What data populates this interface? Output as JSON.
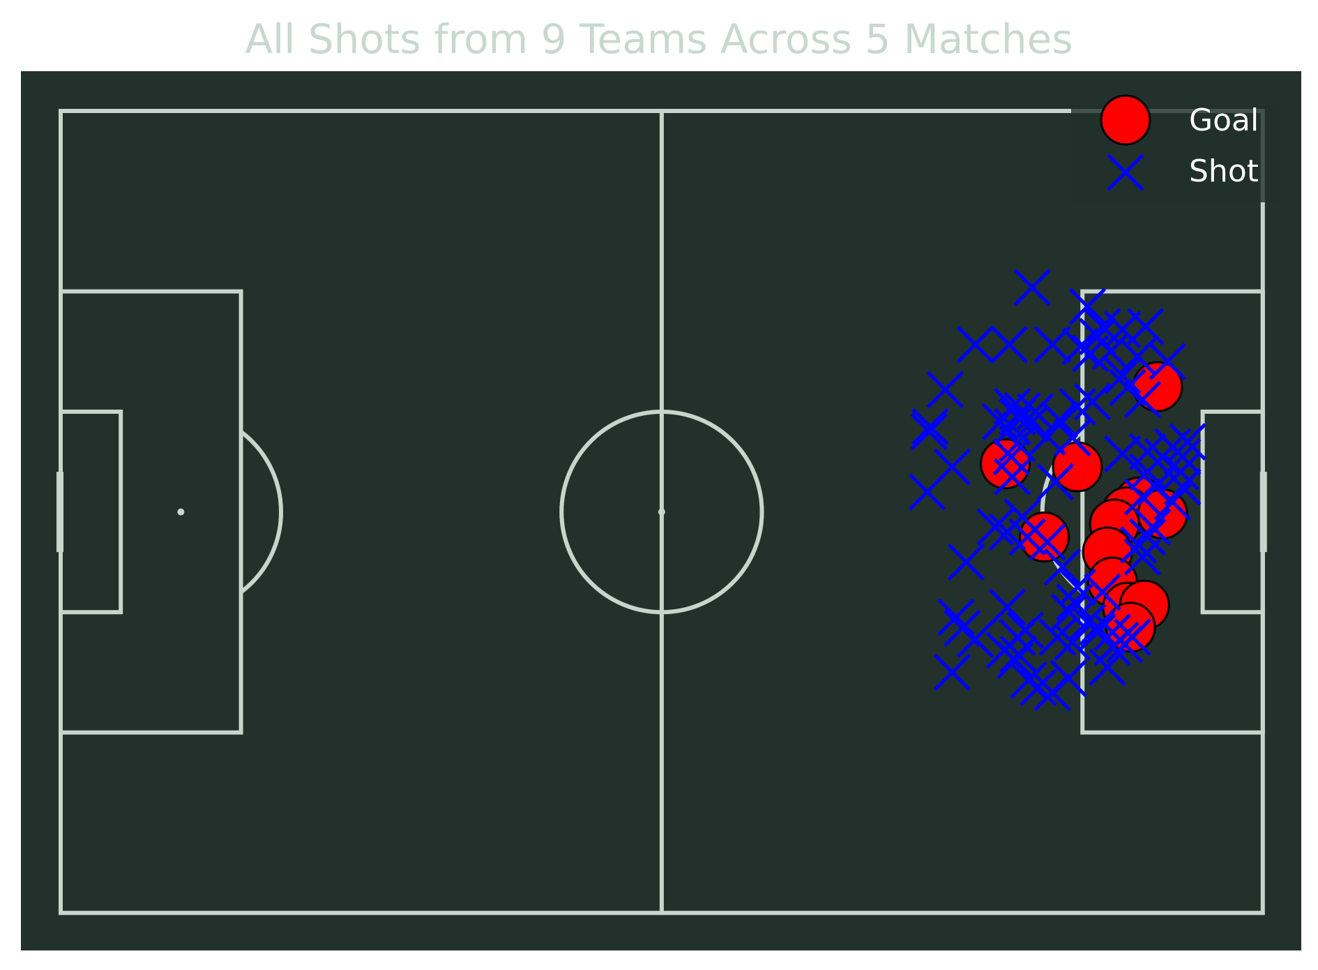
{
  "chart_data": {
    "type": "scatter",
    "title": "All Shots from 9 Teams Across 5 Matches",
    "pitch": {
      "length": 120,
      "width": 80,
      "background": "#22312b",
      "line_color": "#c7d5cc"
    },
    "xlim": [
      0,
      120
    ],
    "ylim": [
      0,
      80
    ],
    "legend_position": "top-right",
    "series": [
      {
        "name": "Goal",
        "marker": "circle",
        "color": "#ff0000",
        "edgecolor": "#000000",
        "points": [
          [
            109.5,
            27.5
          ],
          [
            94.3,
            35.2
          ],
          [
            101.5,
            35.5
          ],
          [
            98.2,
            42.5
          ],
          [
            107.7,
            39.0
          ],
          [
            106.4,
            40.0
          ],
          [
            105.2,
            41.2
          ],
          [
            110.0,
            40.2
          ],
          [
            104.5,
            44.0
          ],
          [
            105.0,
            47.0
          ],
          [
            106.5,
            49.5
          ],
          [
            108.2,
            49.3
          ],
          [
            106.8,
            51.5
          ]
        ]
      },
      {
        "name": "Shot",
        "marker": "x",
        "color": "#0000ff",
        "points": [
          [
            97.0,
            17.6
          ],
          [
            102.5,
            19.5
          ],
          [
            104.0,
            21.5
          ],
          [
            106.0,
            21.8
          ],
          [
            108.3,
            21.5
          ],
          [
            103.5,
            22.5
          ],
          [
            101.8,
            23.5
          ],
          [
            104.8,
            24.0
          ],
          [
            107.5,
            24.5
          ],
          [
            91.3,
            23.3
          ],
          [
            94.7,
            23.3
          ],
          [
            99.0,
            23.3
          ],
          [
            110.5,
            25.0
          ],
          [
            102.8,
            24.2
          ],
          [
            106.0,
            26.4
          ],
          [
            88.3,
            27.8
          ],
          [
            106.5,
            27.6
          ],
          [
            108.0,
            28.8
          ],
          [
            101.5,
            29.5
          ],
          [
            103.0,
            29.0
          ],
          [
            95.0,
            29.5
          ],
          [
            96.0,
            29.9
          ],
          [
            97.3,
            30.0
          ],
          [
            95.5,
            30.5
          ],
          [
            96.8,
            31.2
          ],
          [
            99.7,
            30.8
          ],
          [
            95.0,
            31.5
          ],
          [
            93.8,
            31.0
          ],
          [
            86.8,
            31.5
          ],
          [
            86.7,
            32.0
          ],
          [
            95.5,
            33.2
          ],
          [
            98.5,
            32.5
          ],
          [
            101.0,
            32.6
          ],
          [
            94.9,
            34.5
          ],
          [
            106.0,
            34.2
          ],
          [
            108.5,
            34.0
          ],
          [
            110.0,
            34.5
          ],
          [
            112.0,
            34.5
          ],
          [
            112.5,
            33.0
          ],
          [
            89.0,
            35.5
          ],
          [
            111.0,
            33.5
          ],
          [
            111.8,
            36.0
          ],
          [
            95.0,
            36.5
          ],
          [
            108.5,
            36.0
          ],
          [
            99.3,
            37.0
          ],
          [
            86.5,
            38.0
          ],
          [
            109.3,
            37.5
          ],
          [
            112.0,
            37.5
          ],
          [
            108.0,
            38.5
          ],
          [
            111.0,
            39.0
          ],
          [
            96.0,
            40.5
          ],
          [
            93.3,
            41.5
          ],
          [
            94.5,
            42.0
          ],
          [
            96.5,
            42.5
          ],
          [
            109.0,
            41.5
          ],
          [
            108.5,
            42.5
          ],
          [
            107.6,
            43.3
          ],
          [
            90.4,
            45.0
          ],
          [
            108.0,
            44.5
          ],
          [
            98.5,
            43.0
          ],
          [
            100.0,
            45.5
          ],
          [
            101.5,
            47.5
          ],
          [
            104.0,
            48.0
          ],
          [
            101.2,
            49.0
          ],
          [
            94.5,
            49.5
          ],
          [
            100.7,
            50.0
          ],
          [
            102.5,
            51.0
          ],
          [
            103.5,
            51.5
          ],
          [
            89.4,
            50.5
          ],
          [
            90.0,
            51.6
          ],
          [
            91.3,
            52.7
          ],
          [
            95.5,
            52.5
          ],
          [
            96.3,
            51.8
          ],
          [
            99.5,
            52.5
          ],
          [
            101.0,
            53.0
          ],
          [
            94.2,
            53.8
          ],
          [
            95.6,
            54.2
          ],
          [
            89.0,
            56.0
          ],
          [
            95.3,
            54.8
          ],
          [
            104.5,
            55.5
          ],
          [
            105.0,
            53.5
          ],
          [
            105.8,
            52.8
          ],
          [
            106.2,
            53.2
          ],
          [
            103.5,
            52.0
          ],
          [
            107.0,
            52.5
          ],
          [
            105.0,
            52.0
          ],
          [
            96.6,
            56.8
          ],
          [
            99.0,
            58.0
          ],
          [
            100.6,
            56.6
          ],
          [
            97.6,
            57.5
          ]
        ]
      }
    ]
  }
}
